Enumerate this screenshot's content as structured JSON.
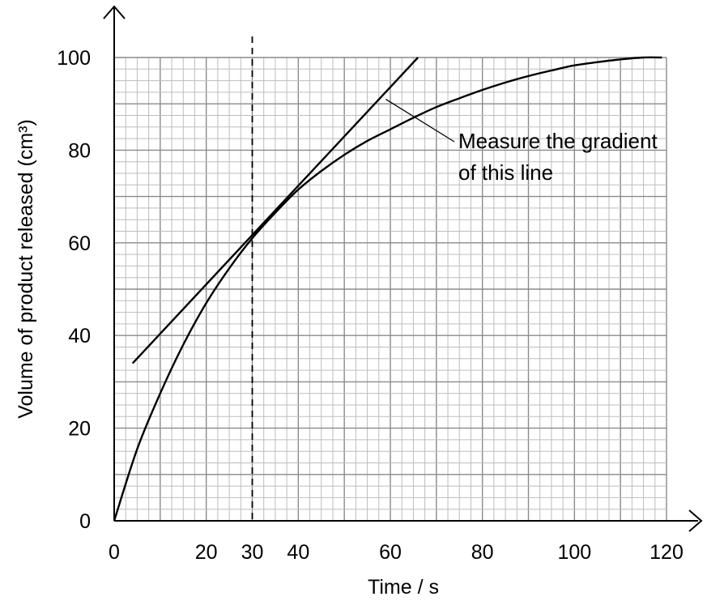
{
  "chart_data": {
    "type": "line",
    "xlabel": "Time / s",
    "ylabel": "Volume of product released (cm³)",
    "xlim": [
      0,
      120
    ],
    "ylim": [
      0,
      100
    ],
    "x_ticks": [
      0,
      20,
      30,
      40,
      60,
      80,
      100,
      120
    ],
    "y_ticks": [
      0,
      20,
      40,
      60,
      80,
      100
    ],
    "grid": true,
    "series": [
      {
        "curve": "product-curve",
        "x": [
          0,
          5,
          10,
          15,
          20,
          25,
          30,
          35,
          40,
          45,
          50,
          55,
          60,
          65,
          70,
          75,
          80,
          85,
          90,
          95,
          100,
          105,
          110,
          115,
          119
        ],
        "y": [
          0,
          15.5,
          27.5,
          38,
          47,
          54.5,
          61,
          66.5,
          71.5,
          75.5,
          79,
          82,
          84.5,
          87,
          89.3,
          91.2,
          93,
          94.6,
          96,
          97.2,
          98.3,
          99,
          99.6,
          100,
          100
        ]
      },
      {
        "curve": "tangent-line",
        "x": [
          4,
          66
        ],
        "y": [
          34,
          100
        ]
      }
    ],
    "marker_line": {
      "x": 30,
      "style": "dashed"
    },
    "annotation": {
      "lines": [
        "Measure the gradient",
        "of this line"
      ],
      "points_to": {
        "x": 59,
        "y": 91
      }
    }
  },
  "colors": {
    "line": "#000000",
    "grid": "#bdbdbd",
    "grid_major": "#8a8a8a"
  }
}
